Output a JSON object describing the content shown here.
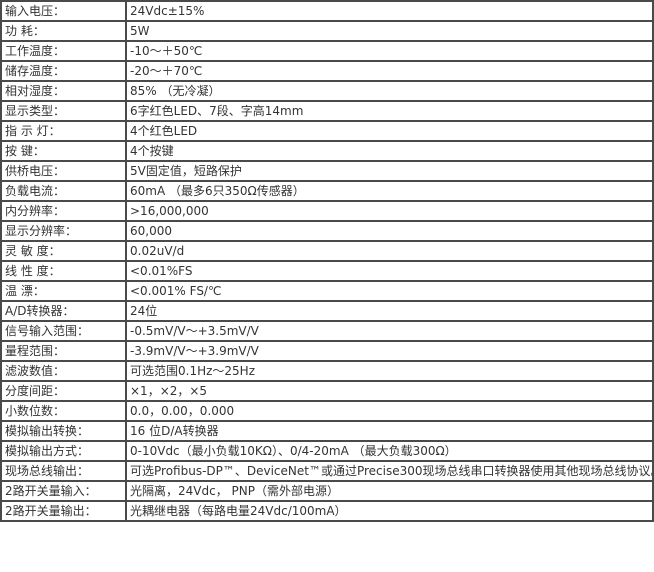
{
  "colors": {
    "border": "#4a4a4a",
    "background": "#ffffff",
    "text": "#333333"
  },
  "table": {
    "rows": [
      {
        "label": "输入电压：",
        "value": "24Vdc±15%"
      },
      {
        "label": "功 耗：",
        "value": "5W"
      },
      {
        "label": "工作温度：",
        "value": "-10～＋50℃"
      },
      {
        "label": "储存温度：",
        "value": "-20～＋70℃"
      },
      {
        "label": "相对湿度：",
        "value": "85% （无冷凝）"
      },
      {
        "label": "显示类型：",
        "value": "6字红色LED、7段、字高14mm"
      },
      {
        "label": "指 示 灯：",
        "value": "4个红色LED"
      },
      {
        "label": "按 键：",
        "value": "4个按键"
      },
      {
        "label": "供桥电压：",
        "value": "5V固定值，短路保护"
      },
      {
        "label": "负载电流：",
        "value": "60mA （最多6只350Ω传感器）"
      },
      {
        "label": "内分辨率：",
        "value": ">16,000,000"
      },
      {
        "label": "显示分辨率：",
        "value": "60,000"
      },
      {
        "label": "灵 敏 度：",
        "value": "0.02uV/d"
      },
      {
        "label": "线 性 度：",
        "value": "<0.01%FS"
      },
      {
        "label": "温 漂：",
        "value": "<0.001% FS/℃"
      },
      {
        "label": "A/D转换器：",
        "value": "24位"
      },
      {
        "label": "信号输入范围：",
        "value": "-0.5mV/V～+3.5mV/V"
      },
      {
        "label": "量程范围：",
        "value": "-3.9mV/V～+3.9mV/V"
      },
      {
        "label": "滤波数值：",
        "value": "可选范围0.1Hz～25Hz"
      },
      {
        "label": "分度间距：",
        "value": "×1，×2，×5"
      },
      {
        "label": "小数位数：",
        "value": "0.0，0.00，0.000"
      },
      {
        "label": "模拟输出转换：",
        "value": "16 位D/A转换器"
      },
      {
        "label": "模拟输出方式：",
        "value": "0-10Vdc（最小负载10KΩ）、0/4-20mA （最大负载300Ω）"
      },
      {
        "label": "现场总线输出：",
        "value": "可选Profibus-DP™、DeviceNet™或通过Precise300现场总线串口转换器使用其他现场总线协议。"
      },
      {
        "label": "2路开关量输入：",
        "value": "光隔离，24Vdc， PNP（需外部电源）"
      },
      {
        "label": "2路开关量输出：",
        "value": "光耦继电器（每路电量24Vdc/100mA）"
      }
    ]
  }
}
